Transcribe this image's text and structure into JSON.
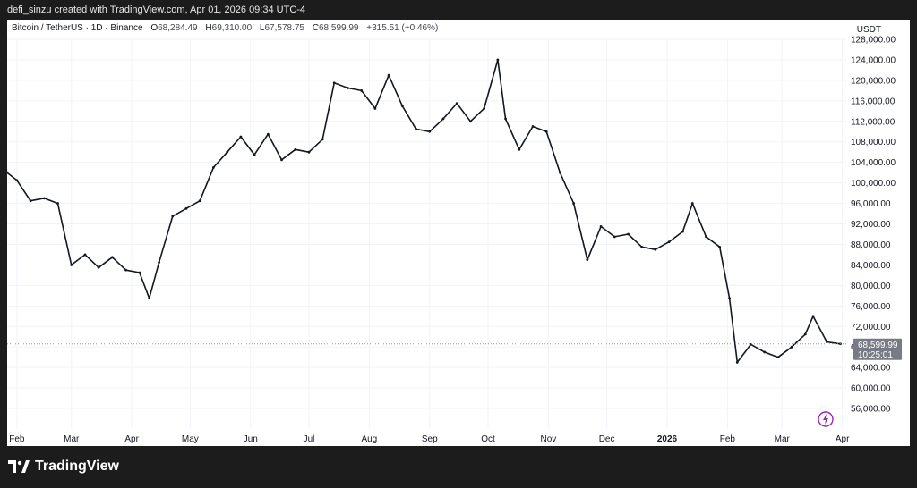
{
  "header": {
    "creator": "defi_sinzu created with TradingView.com, Apr 01, 2026 09:34 UTC-4"
  },
  "legend": {
    "symbol": "Bitcoin / TetherUS · 1D · Binance",
    "o_label": "O",
    "o_value": "68,284.49",
    "h_label": "H",
    "h_value": "69,310.00",
    "l_label": "L",
    "l_value": "67,578.75",
    "c_label": "C",
    "c_value": "68,599.99",
    "change": "+315.51 (+0.46%)"
  },
  "axis_unit": "USDT",
  "price_label": {
    "price": "68,599.99",
    "countdown": "10:25:01"
  },
  "footer": {
    "logo_text": "TradingView"
  },
  "colors": {
    "candle": "#131722",
    "grid": "#f0f3fa",
    "text": "#131722",
    "price_line": "#9598a1",
    "price_tag": "#787b86",
    "accent": "#9c27b0"
  },
  "chart_data": {
    "type": "line",
    "title": "Bitcoin / TetherUS · 1D · Binance",
    "ylabel": "USDT",
    "ylim": [
      52000,
      128000
    ],
    "y_ticks": [
      "56,000.00",
      "60,000.00",
      "64,000.00",
      "68,000.00",
      "72,000.00",
      "76,000.00",
      "80,000.00",
      "84,000.00",
      "88,000.00",
      "92,000.00",
      "96,000.00",
      "100,000.00",
      "104,000.00",
      "108,000.00",
      "112,000.00",
      "116,000.00",
      "120,000.00",
      "124,000.00",
      "128,000.00"
    ],
    "x_ticks": [
      "Feb",
      "Mar",
      "Apr",
      "May",
      "Jun",
      "Jul",
      "Aug",
      "Sep",
      "Oct",
      "Nov",
      "Dec",
      "2026",
      "Feb",
      "Mar",
      "Apr"
    ],
    "series": [
      {
        "points": [
          [
            "2025-01-27",
            102000
          ],
          [
            "2025-02-01",
            100500
          ],
          [
            "2025-02-08",
            96500
          ],
          [
            "2025-02-15",
            97000
          ],
          [
            "2025-02-22",
            96000
          ],
          [
            "2025-03-01",
            84000
          ],
          [
            "2025-03-08",
            86000
          ],
          [
            "2025-03-15",
            83500
          ],
          [
            "2025-03-22",
            85500
          ],
          [
            "2025-03-29",
            83000
          ],
          [
            "2025-04-05",
            82500
          ],
          [
            "2025-04-10",
            77500
          ],
          [
            "2025-04-15",
            84500
          ],
          [
            "2025-04-22",
            93500
          ],
          [
            "2025-04-29",
            95000
          ],
          [
            "2025-05-06",
            96500
          ],
          [
            "2025-05-13",
            103000
          ],
          [
            "2025-05-20",
            106000
          ],
          [
            "2025-05-27",
            109000
          ],
          [
            "2025-06-03",
            105500
          ],
          [
            "2025-06-10",
            109500
          ],
          [
            "2025-06-17",
            104500
          ],
          [
            "2025-06-24",
            106500
          ],
          [
            "2025-07-01",
            106000
          ],
          [
            "2025-07-08",
            108500
          ],
          [
            "2025-07-14",
            119500
          ],
          [
            "2025-07-21",
            118500
          ],
          [
            "2025-07-28",
            118000
          ],
          [
            "2025-08-04",
            114500
          ],
          [
            "2025-08-11",
            121000
          ],
          [
            "2025-08-18",
            115000
          ],
          [
            "2025-08-25",
            110500
          ],
          [
            "2025-09-01",
            110000
          ],
          [
            "2025-09-08",
            112500
          ],
          [
            "2025-09-15",
            115500
          ],
          [
            "2025-09-22",
            112000
          ],
          [
            "2025-09-29",
            114500
          ],
          [
            "2025-10-06",
            124000
          ],
          [
            "2025-10-10",
            112500
          ],
          [
            "2025-10-17",
            106500
          ],
          [
            "2025-10-24",
            111000
          ],
          [
            "2025-10-31",
            110000
          ],
          [
            "2025-11-07",
            102000
          ],
          [
            "2025-11-14",
            96000
          ],
          [
            "2025-11-21",
            85000
          ],
          [
            "2025-11-28",
            91500
          ],
          [
            "2025-12-05",
            89500
          ],
          [
            "2025-12-12",
            90000
          ],
          [
            "2025-12-19",
            87500
          ],
          [
            "2025-12-26",
            87000
          ],
          [
            "2026-01-02",
            88500
          ],
          [
            "2026-01-09",
            90500
          ],
          [
            "2026-01-14",
            96000
          ],
          [
            "2026-01-21",
            89500
          ],
          [
            "2026-01-28",
            87500
          ],
          [
            "2026-02-02",
            77500
          ],
          [
            "2026-02-06",
            65000
          ],
          [
            "2026-02-13",
            68500
          ],
          [
            "2026-02-20",
            67000
          ],
          [
            "2026-02-27",
            66000
          ],
          [
            "2026-03-06",
            68000
          ],
          [
            "2026-03-13",
            70500
          ],
          [
            "2026-03-17",
            74000
          ],
          [
            "2026-03-24",
            69000
          ],
          [
            "2026-03-31",
            68600
          ]
        ]
      }
    ]
  }
}
